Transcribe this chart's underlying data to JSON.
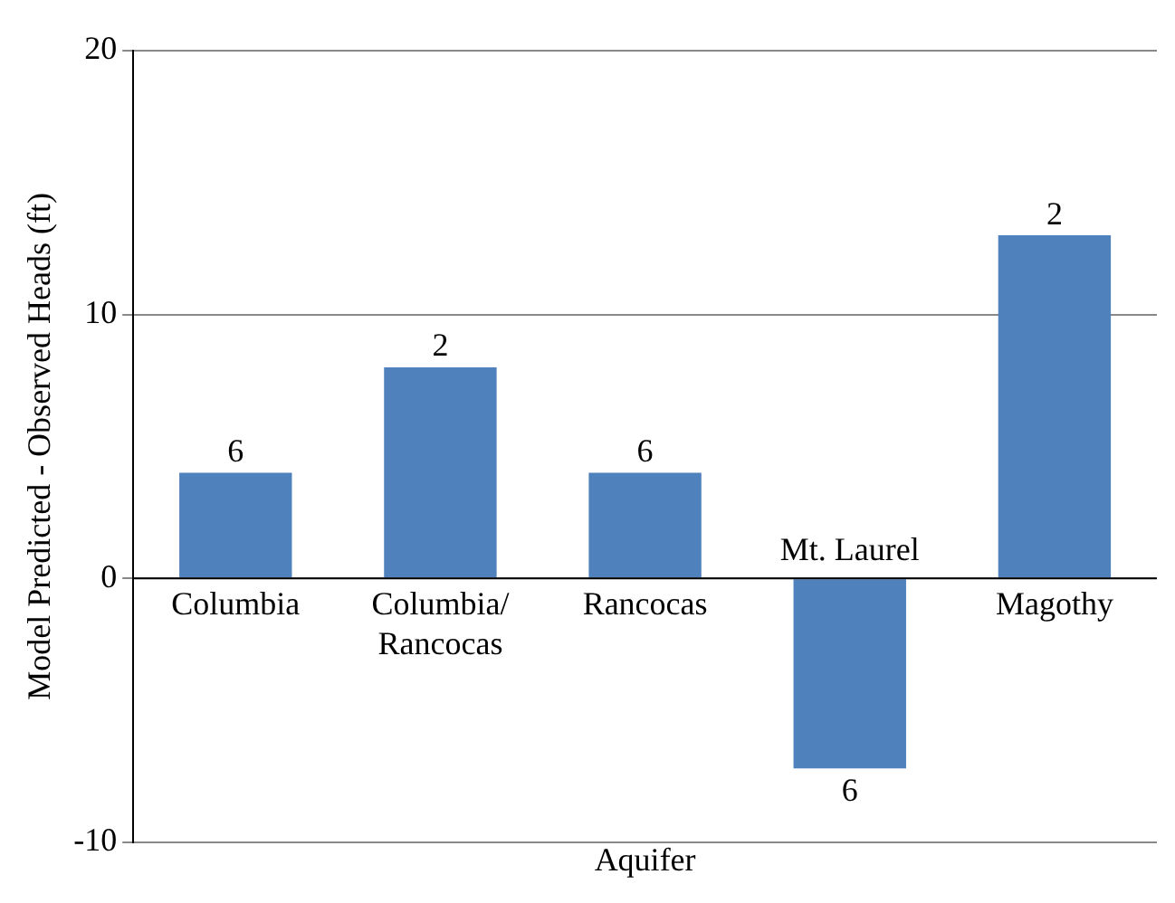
{
  "chart_data": {
    "type": "bar",
    "xlabel": "Aquifer",
    "ylabel": "Model Predicted - Observed Heads (ft)",
    "categories": [
      "Columbia",
      "Columbia/Rancocas",
      "Rancocas",
      "Mt. Laurel",
      "Magothy"
    ],
    "values": [
      4,
      8,
      4,
      -7.2,
      13
    ],
    "annotations": [
      {
        "text": "6",
        "x": "Columbia",
        "y": 4
      },
      {
        "text": "2",
        "x": "Columbia/Rancocas",
        "y": 8
      },
      {
        "text": "6",
        "x": "Rancocas",
        "y": 4
      },
      {
        "text": "6",
        "x": "Mt. Laurel",
        "y": -7.2
      },
      {
        "text": "2",
        "x": "Magothy",
        "y": 13
      }
    ],
    "color": "#4f81bd",
    "ylim": [
      -10,
      20
    ],
    "yticks": [
      -10,
      0,
      10,
      20
    ],
    "grid": "y"
  }
}
